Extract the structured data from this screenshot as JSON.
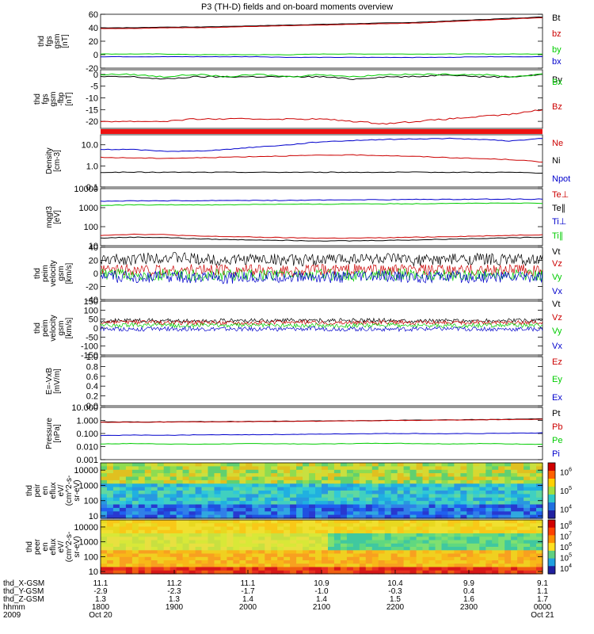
{
  "title": "P3 (TH-D) fields and on-board moments overview",
  "colors": {
    "black": "#000000",
    "red": "#cc0000",
    "green": "#00cc00",
    "blue": "#0000cc"
  },
  "chart_data": [
    {
      "id": "fgs_gsm",
      "type": "line",
      "ylabel": [
        "thd",
        "fgs",
        "gsm",
        "[nT]"
      ],
      "yticks": [
        "60",
        "40",
        "20",
        "0",
        "-20"
      ],
      "ylim": [
        -20,
        60
      ],
      "series": [
        {
          "name": "Bt",
          "color": "#000000",
          "values": [
            40,
            40,
            41,
            41,
            42,
            43,
            44,
            45,
            46,
            47,
            48,
            50,
            52,
            54,
            56
          ]
        },
        {
          "name": "bz",
          "color": "#cc0000",
          "values": [
            39,
            39,
            40,
            40,
            41,
            42,
            43,
            44,
            45,
            46,
            47,
            49,
            51,
            53,
            55
          ]
        },
        {
          "name": "by",
          "color": "#00cc00",
          "values": [
            1,
            1,
            1,
            0,
            0,
            0,
            0,
            1,
            1,
            1,
            1,
            1,
            1,
            1,
            1
          ]
        },
        {
          "name": "bx",
          "color": "#0000cc",
          "values": [
            -3,
            -3,
            -3,
            -3,
            -3,
            -3,
            -4,
            -4,
            -4,
            -4,
            -4,
            -4,
            -3,
            -3,
            -3
          ]
        }
      ]
    },
    {
      "id": "fgs_gse",
      "type": "line",
      "ylabel": [
        "thd",
        "fgs",
        "gsm",
        "-fbp",
        "[nT]"
      ],
      "yticks": [
        "0",
        "-5",
        "-10",
        "-15",
        "-20"
      ],
      "ylim": [
        -23,
        2
      ],
      "series": [
        {
          "name": "By",
          "color": "#000000",
          "values": [
            -1,
            -1,
            -2,
            -1,
            -1,
            -1,
            -1,
            -1,
            -2,
            -1,
            -1,
            0,
            -1,
            -1,
            0
          ]
        },
        {
          "name": "Bx",
          "color": "#00cc00",
          "values": [
            0,
            0,
            -1,
            0,
            -1,
            0,
            -1,
            0,
            -1,
            0,
            0,
            0,
            0,
            -1,
            0
          ]
        },
        {
          "name": "Bz",
          "color": "#cc0000",
          "values": [
            -20,
            -20,
            -20,
            -19,
            -19,
            -19,
            -19,
            -19,
            -20,
            -21,
            -20,
            -19,
            -18,
            -17,
            -15
          ]
        }
      ]
    },
    {
      "id": "density",
      "type": "line",
      "yscale": "log",
      "ylabel": [
        "Density",
        "[cm-3]"
      ],
      "yticks": [
        "10.0",
        "1.0",
        "0.1"
      ],
      "ylim": [
        0.1,
        30
      ],
      "series": [
        {
          "name": "Ne",
          "color": "#cc0000",
          "values": [
            2.5,
            2.4,
            2.3,
            2.4,
            2.6,
            2.8,
            3.0,
            3.2,
            3.3,
            3.1,
            2.8,
            2.5,
            2.2,
            2.0,
            1.5
          ]
        },
        {
          "name": "Ni",
          "color": "#000000",
          "values": [
            0.5,
            0.5,
            0.5,
            0.5,
            0.5,
            0.5,
            0.5,
            0.5,
            0.5,
            0.5,
            0.5,
            0.5,
            0.5,
            0.5,
            0.45
          ]
        },
        {
          "name": "Npot",
          "color": "#0000cc",
          "values": [
            6,
            6,
            5,
            5,
            6,
            8,
            10,
            14,
            16,
            18,
            19,
            20,
            18,
            15,
            20
          ]
        }
      ]
    },
    {
      "id": "temperature",
      "type": "line",
      "yscale": "log",
      "ylabel": [
        "mqgt3",
        "[eV]"
      ],
      "yticks": [
        "10000",
        "1000",
        "100",
        "10"
      ],
      "ylim": [
        10,
        10000
      ],
      "series": [
        {
          "name": "Te⊥",
          "color": "#cc0000",
          "values": [
            35,
            40,
            38,
            32,
            30,
            28,
            26,
            25,
            25,
            26,
            28,
            30,
            32,
            35,
            38
          ]
        },
        {
          "name": "Te∥",
          "color": "#000000",
          "values": [
            25,
            28,
            27,
            23,
            21,
            20,
            19,
            18,
            18,
            19,
            20,
            22,
            24,
            26,
            28
          ]
        },
        {
          "name": "Ti⊥",
          "color": "#0000cc",
          "values": [
            2200,
            2300,
            2300,
            2300,
            2400,
            2400,
            2400,
            2500,
            2600,
            2600,
            2700,
            2700,
            2800,
            2800,
            2800
          ]
        },
        {
          "name": "Ti∥",
          "color": "#00cc00",
          "values": [
            1300,
            1400,
            1400,
            1400,
            1400,
            1500,
            1500,
            1500,
            1600,
            1600,
            1600,
            1700,
            1700,
            1700,
            1700
          ]
        }
      ]
    },
    {
      "id": "peim_velocity_1",
      "type": "line",
      "ylabel": [
        "thd",
        "peim",
        "velocity",
        "gsm",
        "[km/s]"
      ],
      "yticks": [
        "40",
        "20",
        "0",
        "-20",
        "-40"
      ],
      "ylim": [
        -40,
        40
      ],
      "series": [
        {
          "name": "Vt",
          "color": "#000000",
          "values": [
            20,
            22,
            25,
            22,
            20,
            22,
            20,
            21,
            23,
            22,
            20,
            21,
            22,
            21,
            20
          ]
        },
        {
          "name": "Vz",
          "color": "#cc0000",
          "values": [
            5,
            6,
            4,
            5,
            6,
            5,
            4,
            5,
            6,
            5,
            5,
            4,
            5,
            6,
            5
          ]
        },
        {
          "name": "Vy",
          "color": "#00cc00",
          "values": [
            -2,
            -3,
            -2,
            -3,
            -2,
            -3,
            -2,
            -2,
            -3,
            -2,
            -2,
            -3,
            -2,
            -2,
            -2
          ]
        },
        {
          "name": "Vx",
          "color": "#0000cc",
          "values": [
            -5,
            -6,
            -5,
            -6,
            -7,
            -6,
            -5,
            -6,
            -6,
            -5,
            -6,
            -5,
            -6,
            -5,
            -5
          ]
        }
      ]
    },
    {
      "id": "peim_velocity_2",
      "type": "line",
      "ylabel": [
        "thd",
        "peim",
        "velocity",
        "gsm",
        "[km/s]"
      ],
      "yticks": [
        "150",
        "100",
        "50",
        "0",
        "-50",
        "-100",
        "-150"
      ],
      "ylim": [
        -150,
        150
      ],
      "series": [
        {
          "name": "Vt",
          "color": "#000000",
          "values": [
            40,
            42,
            41,
            40,
            42,
            41,
            43,
            42,
            41,
            44,
            42,
            41,
            40,
            42,
            41
          ]
        },
        {
          "name": "Vz",
          "color": "#cc0000",
          "values": [
            30,
            32,
            31,
            30,
            31,
            30,
            32,
            31,
            30,
            32,
            31,
            30,
            31,
            30,
            31
          ]
        },
        {
          "name": "Vy",
          "color": "#00cc00",
          "values": [
            15,
            16,
            15,
            14,
            15,
            16,
            15,
            14,
            15,
            16,
            15,
            14,
            15,
            16,
            15
          ]
        },
        {
          "name": "Vx",
          "color": "#0000cc",
          "values": [
            -5,
            -6,
            -5,
            -4,
            -5,
            -6,
            -5,
            -4,
            -5,
            -6,
            -5,
            -4,
            -5,
            -6,
            -5
          ]
        }
      ]
    },
    {
      "id": "e_field",
      "type": "line",
      "ylabel": [
        "E=-VxB",
        "[mV/m]"
      ],
      "yticks": [
        "1.0",
        "0.8",
        "0.6",
        "0.4",
        "0.2",
        "0.0"
      ],
      "ylim": [
        0,
        1
      ],
      "series": [
        {
          "name": "Ez",
          "color": "#cc0000",
          "values": []
        },
        {
          "name": "Ey",
          "color": "#00cc00",
          "values": []
        },
        {
          "name": "Ex",
          "color": "#0000cc",
          "values": []
        }
      ]
    },
    {
      "id": "pressure",
      "type": "line",
      "yscale": "log",
      "ylabel": [
        "Pressure",
        "[nPa]"
      ],
      "yticks": [
        "10.000",
        "1.000",
        "0.100",
        "0.010",
        "0.001"
      ],
      "ylim": [
        0.001,
        10
      ],
      "series": [
        {
          "name": "Pt",
          "color": "#000000",
          "values": [
            0.75,
            0.76,
            0.78,
            0.8,
            0.82,
            0.85,
            0.88,
            0.9,
            0.95,
            1.0,
            1.05,
            1.1,
            1.15,
            1.2,
            1.3
          ]
        },
        {
          "name": "Pb",
          "color": "#cc0000",
          "values": [
            0.72,
            0.73,
            0.75,
            0.77,
            0.79,
            0.82,
            0.85,
            0.88,
            0.92,
            0.97,
            1.02,
            1.07,
            1.12,
            1.17,
            1.25
          ]
        },
        {
          "name": "Pe",
          "color": "#00cc00",
          "values": [
            0.016,
            0.017,
            0.016,
            0.015,
            0.016,
            0.017,
            0.016,
            0.016,
            0.017,
            0.018,
            0.017,
            0.016,
            0.017,
            0.016,
            0.015
          ]
        },
        {
          "name": "Pi",
          "color": "#0000cc",
          "values": [
            0.07,
            0.075,
            0.072,
            0.078,
            0.08,
            0.082,
            0.085,
            0.09,
            0.095,
            0.1,
            0.1,
            0.095,
            0.1,
            0.105,
            0.11
          ]
        }
      ]
    },
    {
      "id": "peir_eflux",
      "type": "heatmap",
      "yscale": "log",
      "ylabel": [
        "thd",
        "peir",
        "en",
        "eflux",
        "eV/",
        "(cm^2-s-",
        "sr-eV)"
      ],
      "yticks": [
        "10000",
        "1000",
        "100",
        "10"
      ],
      "ylim": [
        7,
        30000
      ],
      "colorbar": {
        "ticks": [
          "10^6",
          "10^5",
          "10^4"
        ],
        "range": [
          3.5,
          6.5
        ]
      }
    },
    {
      "id": "peer_eflux",
      "type": "heatmap",
      "yscale": "log",
      "ylabel": [
        "thd",
        "peer",
        "en",
        "eflux",
        "eV/",
        "(cm^2-s-",
        "sr-eV)"
      ],
      "yticks": [
        "10000",
        "1000",
        "100",
        "10"
      ],
      "ylim": [
        7,
        30000
      ],
      "colorbar": {
        "ticks": [
          "10^8",
          "10^7",
          "10^6",
          "10^5",
          "10^4"
        ],
        "range": [
          3.5,
          8.5
        ]
      }
    }
  ],
  "xaxis": {
    "rows": [
      {
        "label": "thd_X-GSM",
        "values": [
          "11.1",
          "11.2",
          "11.1",
          "10.9",
          "10.4",
          "9.9",
          "9.1"
        ]
      },
      {
        "label": "thd_Y-GSM",
        "values": [
          "-2.9",
          "-2.3",
          "-1.7",
          "-1.0",
          "-0.3",
          "0.4",
          "1.1"
        ]
      },
      {
        "label": "thd_Z-GSM",
        "values": [
          "1.3",
          "1.3",
          "1.4",
          "1.4",
          "1.5",
          "1.6",
          "1.7"
        ]
      },
      {
        "label": "hhmm",
        "values": [
          "1800",
          "1900",
          "2000",
          "2100",
          "2200",
          "2300",
          "0000"
        ]
      },
      {
        "label": "2009",
        "values": [
          "Oct 20",
          "",
          "",
          "",
          "",
          "",
          "Oct 21"
        ]
      }
    ]
  }
}
